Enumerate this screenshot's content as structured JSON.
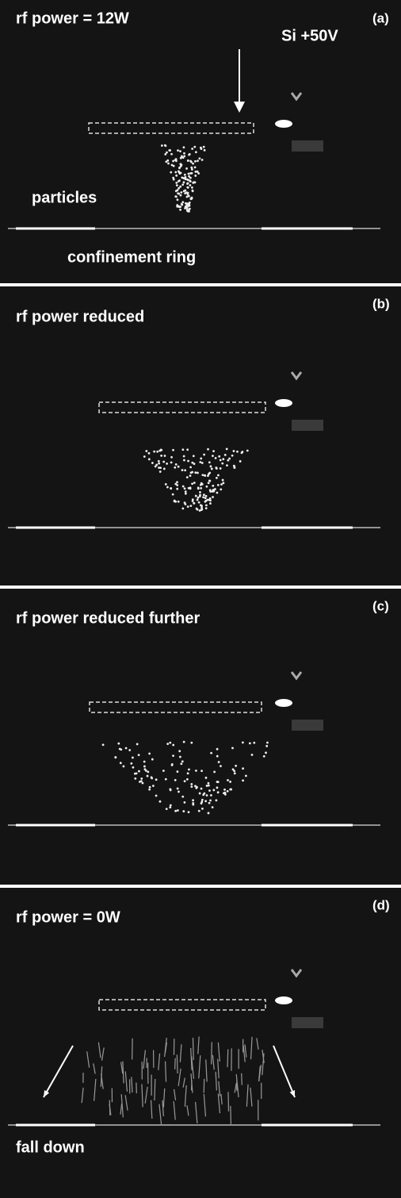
{
  "panels": [
    {
      "title": "rf power = 12W",
      "label": "(a)",
      "annotations": [
        "Si +50V",
        "particles",
        "confinement ring"
      ]
    },
    {
      "title": "rf power reduced",
      "label": "(b)"
    },
    {
      "title": "rf power reduced further",
      "label": "(c)"
    },
    {
      "title": "rf power = 0W",
      "label": "(d)",
      "annotations": [
        "fall down"
      ]
    }
  ]
}
